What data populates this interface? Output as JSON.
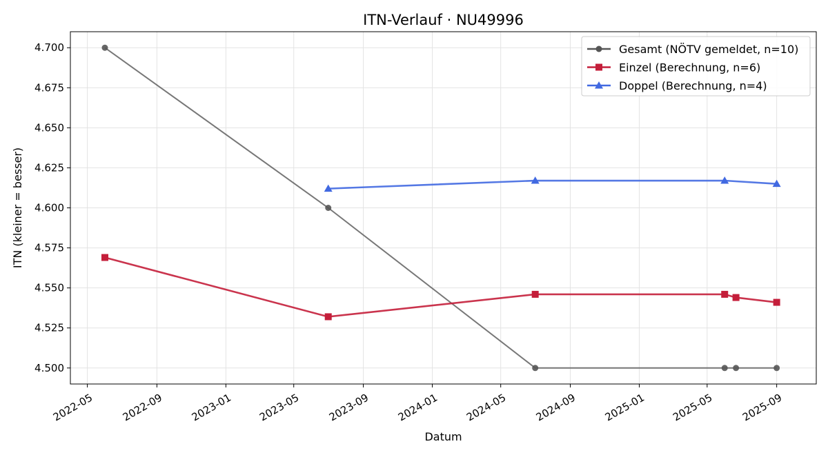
{
  "chart_data": {
    "type": "line",
    "title": "ITN-Verlauf · NU49996",
    "xlabel": "Datum",
    "ylabel": "ITN  (kleiner = besser)",
    "xlim": [
      "2022-04-01",
      "2025-11-10"
    ],
    "ylim": [
      4.49,
      4.71
    ],
    "grid": true,
    "legend_position": "top-right",
    "x_ticks": [
      "2022-05",
      "2022-09",
      "2023-01",
      "2023-05",
      "2023-09",
      "2024-01",
      "2024-05",
      "2024-09",
      "2025-01",
      "2025-05",
      "2025-09"
    ],
    "y_ticks": [
      "4.500",
      "4.525",
      "4.550",
      "4.575",
      "4.600",
      "4.625",
      "4.650",
      "4.675",
      "4.700"
    ],
    "series": [
      {
        "name": "Gesamt (NÖTV gemeldet, n=10)",
        "color": "#555555",
        "marker": "circle",
        "points": [
          {
            "x": "2022-06-01",
            "y": 4.7
          },
          {
            "x": "2023-07-01",
            "y": 4.6
          },
          {
            "x": "2024-07-01",
            "y": 4.5
          },
          {
            "x": "2025-06-01",
            "y": 4.5
          },
          {
            "x": "2025-06-21",
            "y": 4.5
          },
          {
            "x": "2025-09-01",
            "y": 4.5
          }
        ]
      },
      {
        "name": "Einzel (Berechnung, n=6)",
        "color": "#c41e3a",
        "marker": "square",
        "points": [
          {
            "x": "2022-06-01",
            "y": 4.569
          },
          {
            "x": "2023-07-01",
            "y": 4.532
          },
          {
            "x": "2024-07-01",
            "y": 4.546
          },
          {
            "x": "2025-06-01",
            "y": 4.546
          },
          {
            "x": "2025-06-21",
            "y": 4.544
          },
          {
            "x": "2025-09-01",
            "y": 4.541
          }
        ]
      },
      {
        "name": "Doppel (Berechnung, n=4)",
        "color": "#4169e1",
        "marker": "triangle",
        "points": [
          {
            "x": "2023-07-01",
            "y": 4.612
          },
          {
            "x": "2024-07-01",
            "y": 4.617
          },
          {
            "x": "2025-06-01",
            "y": 4.617
          },
          {
            "x": "2025-09-01",
            "y": 4.615
          }
        ]
      }
    ]
  }
}
